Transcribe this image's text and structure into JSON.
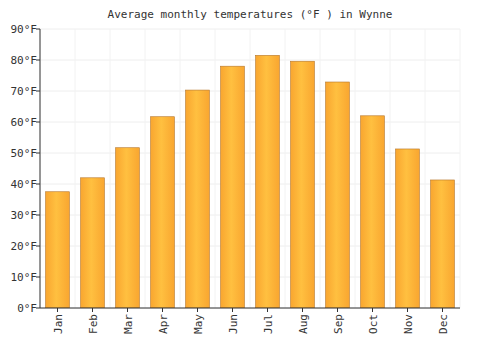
{
  "chart_data": {
    "type": "bar",
    "title": "Average monthly temperatures (°F ) in Wynne",
    "categories": [
      "Jan",
      "Feb",
      "Mar",
      "Apr",
      "May",
      "Jun",
      "Jul",
      "Aug",
      "Sep",
      "Oct",
      "Nov",
      "Dec"
    ],
    "values": [
      37.5,
      42,
      51.7,
      61.7,
      70.3,
      78,
      81.5,
      79.6,
      72.9,
      62,
      51.3,
      41.3
    ],
    "color": "#f9a630",
    "ylim": [
      0,
      90
    ],
    "yticks": [
      {
        "value": 0,
        "label": "0°F"
      },
      {
        "value": 10,
        "label": "10°F"
      },
      {
        "value": 20,
        "label": "20°F"
      },
      {
        "value": 30,
        "label": "30°F"
      },
      {
        "value": 40,
        "label": "40°F"
      },
      {
        "value": 50,
        "label": "50°F"
      },
      {
        "value": 60,
        "label": "60°F"
      },
      {
        "value": 70,
        "label": "70°F"
      },
      {
        "value": 80,
        "label": "80°F"
      },
      {
        "value": 90,
        "label": "90°F"
      }
    ],
    "grid": true
  }
}
